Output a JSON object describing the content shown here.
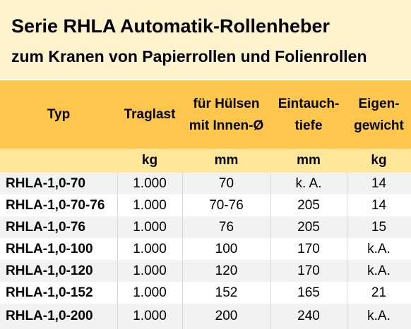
{
  "title": {
    "line1": "Serie RHLA Automatik-Rollenheber",
    "line2": "zum Kranen von Papierrollen und Folienrollen"
  },
  "columns": [
    {
      "header": [
        "Typ"
      ],
      "unit": ""
    },
    {
      "header": [
        "Traglast"
      ],
      "unit": "kg"
    },
    {
      "header": [
        "für Hülsen",
        "mit Innen-Ø"
      ],
      "unit": "mm"
    },
    {
      "header": [
        "Eintauch-",
        "tiefe"
      ],
      "unit": "mm"
    },
    {
      "header": [
        "Eigen-",
        "gewicht"
      ],
      "unit": "kg"
    }
  ],
  "rows": [
    [
      "RHLA-1,0-70",
      "1.000",
      "70",
      "k. A.",
      "14"
    ],
    [
      "RHLA-1,0-70-76",
      "1.000",
      "70-76",
      "205",
      "14"
    ],
    [
      "RHLA-1,0-76",
      "1.000",
      "76",
      "205",
      "15"
    ],
    [
      "RHLA-1,0-100",
      "1.000",
      "100",
      "170",
      "k.A."
    ],
    [
      "RHLA-1,0-120",
      "1.000",
      "120",
      "170",
      "k.A."
    ],
    [
      "RHLA-1,0-152",
      "1.000",
      "152",
      "165",
      "21"
    ],
    [
      "RHLA-1,0-200",
      "1.000",
      "200",
      "240",
      "k.A."
    ]
  ],
  "colors": {
    "title_bg": "#FFF2CC",
    "header_bg": "#FFC64D",
    "unit_bg": "#FFE699",
    "row_alt_bg": "#F2F2F2"
  }
}
